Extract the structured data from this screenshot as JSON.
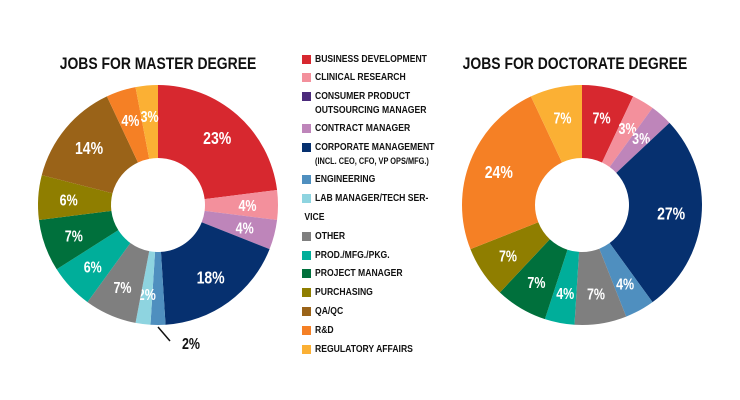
{
  "chart_data": [
    {
      "type": "pie",
      "title": "JOBS FOR MASTER DEGREE",
      "categories": [
        "BUSINESS DEVELOPMENT",
        "CLINICAL RESEARCH",
        "CONSUMER PRODUCT OUTSOURCING MANAGER",
        "CONTRACT MANAGER",
        "CORPORATE MANAGEMENT",
        "ENGINEERING",
        "LAB MANAGER/TECH SERVICE",
        "OTHER",
        "PROD./MFG./PKG.",
        "PROJECT MANAGER",
        "PURCHASING",
        "QA/QC",
        "R&D",
        "REGULATORY AFFAIRS"
      ],
      "values": [
        23,
        4,
        0,
        4,
        18,
        2,
        2,
        7,
        6,
        7,
        6,
        14,
        4,
        3
      ],
      "unit": "%"
    },
    {
      "type": "pie",
      "title": "JOBS FOR DOCTORATE DEGREE",
      "categories": [
        "BUSINESS DEVELOPMENT",
        "CLINICAL RESEARCH",
        "CONSUMER PRODUCT OUTSOURCING MANAGER",
        "CONTRACT MANAGER",
        "CORPORATE MANAGEMENT",
        "ENGINEERING",
        "LAB MANAGER/TECH SERVICE",
        "OTHER",
        "PROD./MFG./PKG.",
        "PROJECT MANAGER",
        "PURCHASING",
        "QA/QC",
        "R&D",
        "REGULATORY AFFAIRS"
      ],
      "values": [
        7,
        3,
        0,
        3,
        27,
        4,
        0,
        7,
        4,
        7,
        7,
        0,
        24,
        7
      ],
      "unit": "%"
    }
  ],
  "legend": {
    "placement": "center",
    "items": [
      {
        "label": "BUSINESS DEVELOPMENT",
        "color": "#d7282f"
      },
      {
        "label": "CLINICAL RESEARCH",
        "color": "#f3909c"
      },
      {
        "label": "CONSUMER PRODUCT",
        "label2": "OUTSOURCING MANAGER",
        "color": "#4b2a7b"
      },
      {
        "label": "CONTRACT MANAGER",
        "color": "#be85ba"
      },
      {
        "label": "CORPORATE MANAGEMENT",
        "label2": "(INCL. CEO, CFO, VP OPS/MFG.)",
        "color": "#06306f"
      },
      {
        "label": "ENGINEERING",
        "color": "#4f8fbf"
      },
      {
        "label": "LAB MANAGER/TECH SER-",
        "label2": "VICE",
        "color": "#8ed4e0"
      },
      {
        "label": "OTHER",
        "color": "#7f7f7f"
      },
      {
        "label": "PROD./MFG./PKG.",
        "color": "#00ae9a"
      },
      {
        "label": "PROJECT MANAGER",
        "color": "#00703c"
      },
      {
        "label": "PURCHASING",
        "color": "#8f7e00"
      },
      {
        "label": "QA/QC",
        "color": "#9a6318"
      },
      {
        "label": "R&D",
        "color": "#f58025"
      },
      {
        "label": "REGULATORY AFFAIRS",
        "color": "#fbb034"
      }
    ]
  }
}
